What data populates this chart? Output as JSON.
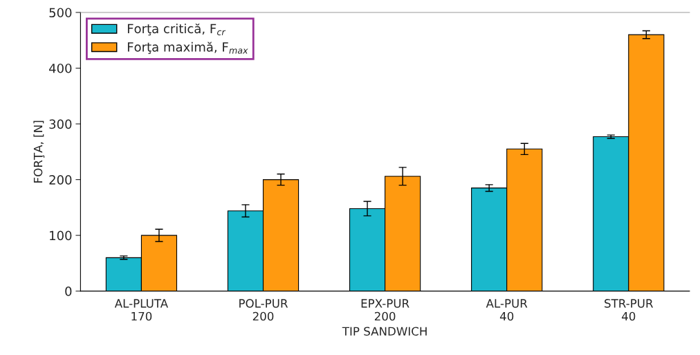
{
  "chart_data": {
    "type": "bar",
    "xlabel": "TIP SANDWICH",
    "ylabel": "FORŢA, [N]",
    "categories": [
      "AL-PLUTA\n170",
      "POL-PUR\n200",
      "EPX-PUR\n200",
      "AL-PUR\n40",
      "STR-PUR\n40"
    ],
    "series": [
      {
        "name": "Forţa critică, F$_{cr}$",
        "color": "#1ab8cc",
        "values": [
          60,
          144,
          148,
          185,
          277
        ],
        "errors": [
          3,
          11,
          13,
          6,
          3
        ]
      },
      {
        "name": "Forţa maximă, F$_{max}$",
        "color": "#ff9a10",
        "values": [
          100,
          200,
          206,
          255,
          460
        ],
        "errors": [
          11,
          10,
          16,
          10,
          7
        ]
      }
    ],
    "ylim": [
      0,
      500
    ],
    "yticks": [
      0,
      100,
      200,
      300,
      400,
      500
    ],
    "grid": false,
    "legend": "top left"
  }
}
